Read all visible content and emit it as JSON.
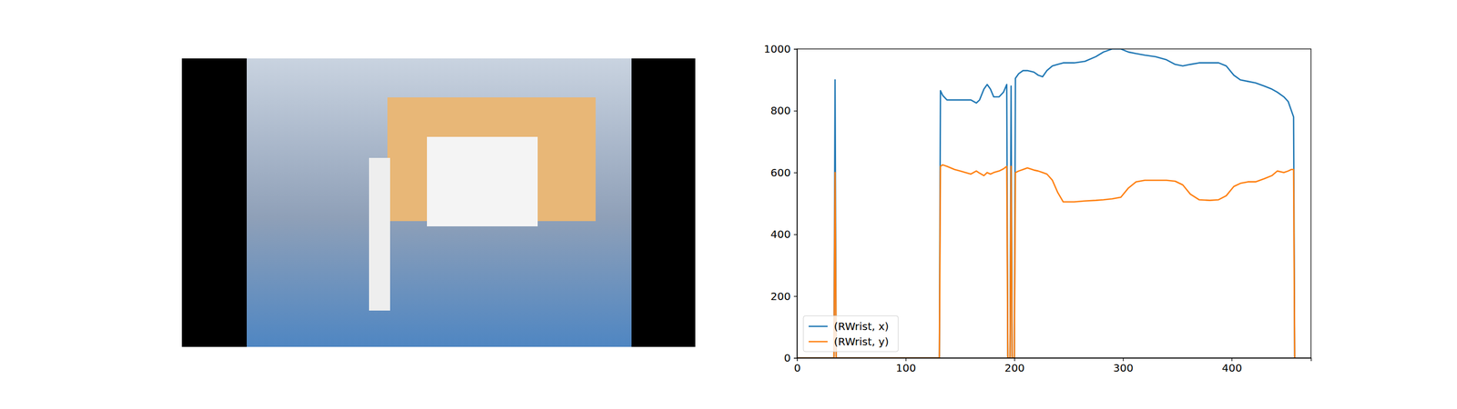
{
  "chart_data": {
    "type": "line",
    "x": [
      0,
      34,
      35,
      36,
      131,
      132,
      134,
      138,
      145,
      150,
      155,
      160,
      165,
      168,
      172,
      175,
      178,
      181,
      186,
      190,
      193,
      194,
      196,
      197,
      198,
      200,
      201,
      204,
      208,
      212,
      218,
      222,
      226,
      230,
      235,
      240,
      245,
      255,
      265,
      275,
      282,
      290,
      298,
      305,
      312,
      320,
      330,
      340,
      348,
      355,
      362,
      370,
      380,
      388,
      395,
      402,
      408,
      415,
      422,
      430,
      437,
      442,
      448,
      452,
      455,
      457,
      458
    ],
    "series": [
      {
        "name": "(RWrist, x)",
        "color": "#1f77b4",
        "values": [
          0,
          0,
          900,
          0,
          0,
          865,
          850,
          835,
          835,
          835,
          835,
          835,
          825,
          835,
          870,
          885,
          870,
          845,
          845,
          860,
          885,
          0,
          0,
          880,
          0,
          0,
          905,
          920,
          930,
          930,
          925,
          915,
          910,
          930,
          945,
          950,
          955,
          955,
          960,
          975,
          990,
          1000,
          1000,
          990,
          985,
          980,
          975,
          965,
          950,
          945,
          950,
          955,
          955,
          955,
          945,
          915,
          900,
          895,
          890,
          880,
          870,
          860,
          845,
          830,
          800,
          780,
          0
        ]
      },
      {
        "name": "(RWrist, y)",
        "color": "#ff7f0e",
        "values": [
          0,
          0,
          600,
          0,
          0,
          620,
          625,
          620,
          610,
          605,
          600,
          595,
          605,
          598,
          590,
          600,
          595,
          600,
          605,
          612,
          620,
          0,
          0,
          620,
          0,
          0,
          600,
          605,
          610,
          615,
          608,
          605,
          600,
          595,
          575,
          535,
          505,
          505,
          508,
          510,
          512,
          515,
          520,
          550,
          570,
          575,
          575,
          575,
          572,
          560,
          530,
          512,
          510,
          512,
          525,
          555,
          565,
          570,
          570,
          580,
          590,
          605,
          600,
          605,
          610,
          610,
          0
        ]
      }
    ],
    "xlim": [
      0,
      473
    ],
    "ylim": [
      0,
      1000
    ],
    "xticks": [
      0,
      100,
      200,
      300,
      400
    ],
    "yticks": [
      0,
      200,
      400,
      600,
      800,
      1000
    ],
    "legend": "lower left"
  }
}
